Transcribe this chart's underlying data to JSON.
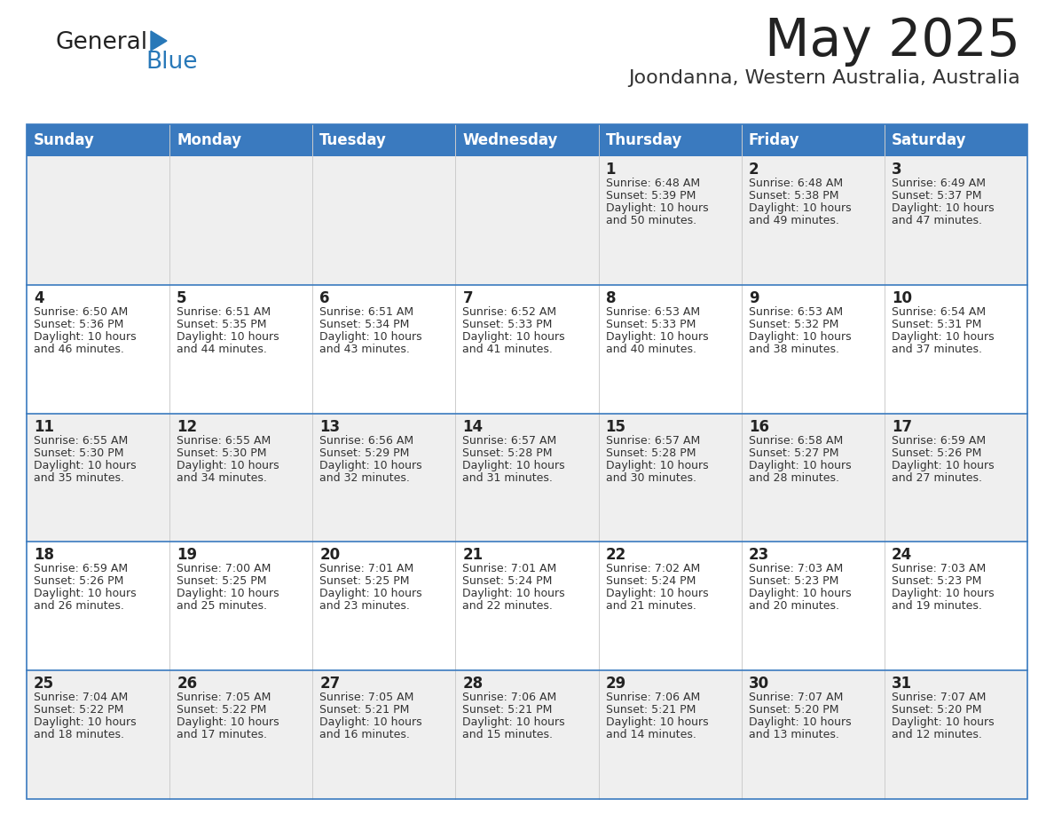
{
  "title": "May 2025",
  "subtitle": "Joondanna, Western Australia, Australia",
  "header_bg": "#3a7abf",
  "header_text": "#ffffff",
  "row_bg_even": "#efefef",
  "row_bg_odd": "#ffffff",
  "day_names": [
    "Sunday",
    "Monday",
    "Tuesday",
    "Wednesday",
    "Thursday",
    "Friday",
    "Saturday"
  ],
  "days": [
    {
      "day": 1,
      "col": 4,
      "row": 0,
      "sunrise": "6:48 AM",
      "sunset": "5:39 PM",
      "daylight_h": "10 hours",
      "daylight_m": "and 50 minutes."
    },
    {
      "day": 2,
      "col": 5,
      "row": 0,
      "sunrise": "6:48 AM",
      "sunset": "5:38 PM",
      "daylight_h": "10 hours",
      "daylight_m": "and 49 minutes."
    },
    {
      "day": 3,
      "col": 6,
      "row": 0,
      "sunrise": "6:49 AM",
      "sunset": "5:37 PM",
      "daylight_h": "10 hours",
      "daylight_m": "and 47 minutes."
    },
    {
      "day": 4,
      "col": 0,
      "row": 1,
      "sunrise": "6:50 AM",
      "sunset": "5:36 PM",
      "daylight_h": "10 hours",
      "daylight_m": "and 46 minutes."
    },
    {
      "day": 5,
      "col": 1,
      "row": 1,
      "sunrise": "6:51 AM",
      "sunset": "5:35 PM",
      "daylight_h": "10 hours",
      "daylight_m": "and 44 minutes."
    },
    {
      "day": 6,
      "col": 2,
      "row": 1,
      "sunrise": "6:51 AM",
      "sunset": "5:34 PM",
      "daylight_h": "10 hours",
      "daylight_m": "and 43 minutes."
    },
    {
      "day": 7,
      "col": 3,
      "row": 1,
      "sunrise": "6:52 AM",
      "sunset": "5:33 PM",
      "daylight_h": "10 hours",
      "daylight_m": "and 41 minutes."
    },
    {
      "day": 8,
      "col": 4,
      "row": 1,
      "sunrise": "6:53 AM",
      "sunset": "5:33 PM",
      "daylight_h": "10 hours",
      "daylight_m": "and 40 minutes."
    },
    {
      "day": 9,
      "col": 5,
      "row": 1,
      "sunrise": "6:53 AM",
      "sunset": "5:32 PM",
      "daylight_h": "10 hours",
      "daylight_m": "and 38 minutes."
    },
    {
      "day": 10,
      "col": 6,
      "row": 1,
      "sunrise": "6:54 AM",
      "sunset": "5:31 PM",
      "daylight_h": "10 hours",
      "daylight_m": "and 37 minutes."
    },
    {
      "day": 11,
      "col": 0,
      "row": 2,
      "sunrise": "6:55 AM",
      "sunset": "5:30 PM",
      "daylight_h": "10 hours",
      "daylight_m": "and 35 minutes."
    },
    {
      "day": 12,
      "col": 1,
      "row": 2,
      "sunrise": "6:55 AM",
      "sunset": "5:30 PM",
      "daylight_h": "10 hours",
      "daylight_m": "and 34 minutes."
    },
    {
      "day": 13,
      "col": 2,
      "row": 2,
      "sunrise": "6:56 AM",
      "sunset": "5:29 PM",
      "daylight_h": "10 hours",
      "daylight_m": "and 32 minutes."
    },
    {
      "day": 14,
      "col": 3,
      "row": 2,
      "sunrise": "6:57 AM",
      "sunset": "5:28 PM",
      "daylight_h": "10 hours",
      "daylight_m": "and 31 minutes."
    },
    {
      "day": 15,
      "col": 4,
      "row": 2,
      "sunrise": "6:57 AM",
      "sunset": "5:28 PM",
      "daylight_h": "10 hours",
      "daylight_m": "and 30 minutes."
    },
    {
      "day": 16,
      "col": 5,
      "row": 2,
      "sunrise": "6:58 AM",
      "sunset": "5:27 PM",
      "daylight_h": "10 hours",
      "daylight_m": "and 28 minutes."
    },
    {
      "day": 17,
      "col": 6,
      "row": 2,
      "sunrise": "6:59 AM",
      "sunset": "5:26 PM",
      "daylight_h": "10 hours",
      "daylight_m": "and 27 minutes."
    },
    {
      "day": 18,
      "col": 0,
      "row": 3,
      "sunrise": "6:59 AM",
      "sunset": "5:26 PM",
      "daylight_h": "10 hours",
      "daylight_m": "and 26 minutes."
    },
    {
      "day": 19,
      "col": 1,
      "row": 3,
      "sunrise": "7:00 AM",
      "sunset": "5:25 PM",
      "daylight_h": "10 hours",
      "daylight_m": "and 25 minutes."
    },
    {
      "day": 20,
      "col": 2,
      "row": 3,
      "sunrise": "7:01 AM",
      "sunset": "5:25 PM",
      "daylight_h": "10 hours",
      "daylight_m": "and 23 minutes."
    },
    {
      "day": 21,
      "col": 3,
      "row": 3,
      "sunrise": "7:01 AM",
      "sunset": "5:24 PM",
      "daylight_h": "10 hours",
      "daylight_m": "and 22 minutes."
    },
    {
      "day": 22,
      "col": 4,
      "row": 3,
      "sunrise": "7:02 AM",
      "sunset": "5:24 PM",
      "daylight_h": "10 hours",
      "daylight_m": "and 21 minutes."
    },
    {
      "day": 23,
      "col": 5,
      "row": 3,
      "sunrise": "7:03 AM",
      "sunset": "5:23 PM",
      "daylight_h": "10 hours",
      "daylight_m": "and 20 minutes."
    },
    {
      "day": 24,
      "col": 6,
      "row": 3,
      "sunrise": "7:03 AM",
      "sunset": "5:23 PM",
      "daylight_h": "10 hours",
      "daylight_m": "and 19 minutes."
    },
    {
      "day": 25,
      "col": 0,
      "row": 4,
      "sunrise": "7:04 AM",
      "sunset": "5:22 PM",
      "daylight_h": "10 hours",
      "daylight_m": "and 18 minutes."
    },
    {
      "day": 26,
      "col": 1,
      "row": 4,
      "sunrise": "7:05 AM",
      "sunset": "5:22 PM",
      "daylight_h": "10 hours",
      "daylight_m": "and 17 minutes."
    },
    {
      "day": 27,
      "col": 2,
      "row": 4,
      "sunrise": "7:05 AM",
      "sunset": "5:21 PM",
      "daylight_h": "10 hours",
      "daylight_m": "and 16 minutes."
    },
    {
      "day": 28,
      "col": 3,
      "row": 4,
      "sunrise": "7:06 AM",
      "sunset": "5:21 PM",
      "daylight_h": "10 hours",
      "daylight_m": "and 15 minutes."
    },
    {
      "day": 29,
      "col": 4,
      "row": 4,
      "sunrise": "7:06 AM",
      "sunset": "5:21 PM",
      "daylight_h": "10 hours",
      "daylight_m": "and 14 minutes."
    },
    {
      "day": 30,
      "col": 5,
      "row": 4,
      "sunrise": "7:07 AM",
      "sunset": "5:20 PM",
      "daylight_h": "10 hours",
      "daylight_m": "and 13 minutes."
    },
    {
      "day": 31,
      "col": 6,
      "row": 4,
      "sunrise": "7:07 AM",
      "sunset": "5:20 PM",
      "daylight_h": "10 hours",
      "daylight_m": "and 12 minutes."
    }
  ],
  "logo_text1": "General",
  "logo_text2": "Blue",
  "logo_color1": "#222222",
  "logo_color2": "#2878b8",
  "logo_triangle_color": "#2878b8",
  "cell_text_color": "#333333",
  "cell_number_color": "#222222",
  "divider_color": "#3a7abf",
  "background_color": "#ffffff",
  "title_fontsize": 42,
  "subtitle_fontsize": 16,
  "header_fontsize": 12,
  "day_num_fontsize": 12,
  "cell_text_fontsize": 9
}
